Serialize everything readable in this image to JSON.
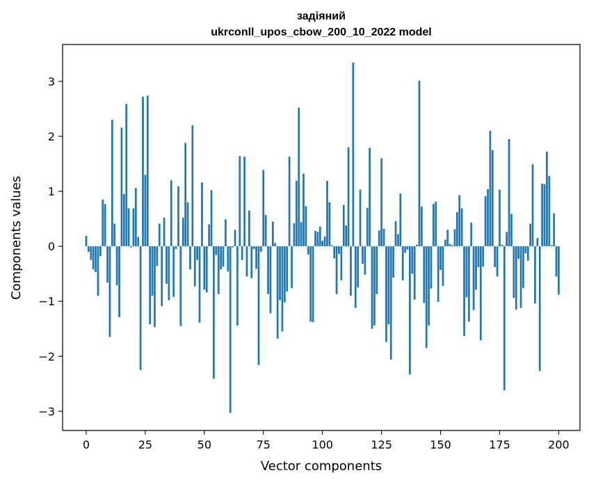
{
  "chart_data": {
    "type": "bar",
    "title_line1": "задіяний",
    "title_line2": "ukrconll_upos_cbow_200_10_2022 model",
    "xlabel": "Vector components",
    "ylabel": "Components values",
    "xlim": [
      -10,
      209
    ],
    "ylim": [
      -3.35,
      3.67
    ],
    "xticks": [
      0,
      25,
      50,
      75,
      100,
      125,
      150,
      175,
      200
    ],
    "yticks": [
      -3,
      -2,
      -1,
      0,
      1,
      2,
      3
    ],
    "ytick_labels": [
      "−3",
      "−2",
      "−1",
      "0",
      "1",
      "2",
      "3"
    ],
    "bar_color": "#1f77b4",
    "values": [
      0.19,
      -0.1,
      -0.25,
      -0.42,
      -0.47,
      -0.9,
      -0.18,
      0.85,
      0.77,
      -0.66,
      -1.65,
      2.3,
      0.41,
      -0.71,
      -1.29,
      2.16,
      0.95,
      2.59,
      0.69,
      -0.02,
      0.69,
      1.06,
      0.17,
      -2.25,
      2.72,
      1.3,
      2.74,
      -1.42,
      -0.9,
      -1.47,
      -0.36,
      0.41,
      -1.09,
      0.52,
      -0.68,
      -0.98,
      1.2,
      -0.92,
      -0.05,
      1.09,
      -1.45,
      0.52,
      1.88,
      0.8,
      -0.42,
      2.2,
      -0.73,
      -0.25,
      -1.39,
      1.16,
      -0.79,
      -0.84,
      0.4,
      1.02,
      -2.41,
      -0.16,
      -0.87,
      -0.42,
      -0.37,
      0.49,
      -0.46,
      -3.03,
      -0.02,
      0.3,
      -1.44,
      1.64,
      -0.25,
      1.63,
      -0.55,
      0.65,
      -0.58,
      -0.05,
      -0.41,
      -2.16,
      -0.1,
      1.39,
      0.57,
      -0.87,
      -1.22,
      0.45,
      0.06,
      -1.68,
      -0.98,
      -1.55,
      -1.02,
      -0.82,
      1.63,
      -0.76,
      0.42,
      1.19,
      2.52,
      0.44,
      1.32,
      0.73,
      -0.15,
      -1.37,
      -1.38,
      0.28,
      0.26,
      0.36,
      0.1,
      0.18,
      1.19,
      0.8,
      0.02,
      -0.22,
      -0.87,
      -0.14,
      -0.62,
      0.75,
      0.38,
      1.8,
      -0.9,
      3.34,
      -1.12,
      -0.75,
      1.03,
      -0.32,
      -0.52,
      0.7,
      1.79,
      -1.5,
      -1.44,
      -0.87,
      0.29,
      1.6,
      0.32,
      -1.74,
      -1.42,
      -2.06,
      -0.57,
      0.46,
      0.22,
      0.96,
      -0.62,
      -0.12,
      -0.06,
      -2.33,
      -0.5,
      -0.97,
      0.03,
      3.01,
      0.72,
      -1.03,
      -1.85,
      -1.44,
      -0.77,
      0.77,
      0.81,
      -1.01,
      -0.43,
      -0.72,
      0.12,
      0.3,
      0.04,
      0.02,
      0.31,
      0.62,
      0.93,
      0.69,
      -1.63,
      -0.93,
      -1.37,
      0.43,
      -1.16,
      -0.79,
      -0.38,
      -1.71,
      -0.37,
      0.91,
      1.04,
      2.1,
      1.75,
      -0.38,
      -0.55,
      1.03,
      0.03,
      -2.62,
      0.26,
      1.95,
      0.59,
      -0.94,
      -1.15,
      -0.23,
      -1.12,
      -0.76,
      -0.13,
      -0.26,
      0.41,
      1.49,
      -1.04,
      0.15,
      -2.27,
      1.14,
      1.13,
      1.72,
      1.28,
      0.02,
      0.6,
      -0.55,
      -0.88
    ]
  }
}
